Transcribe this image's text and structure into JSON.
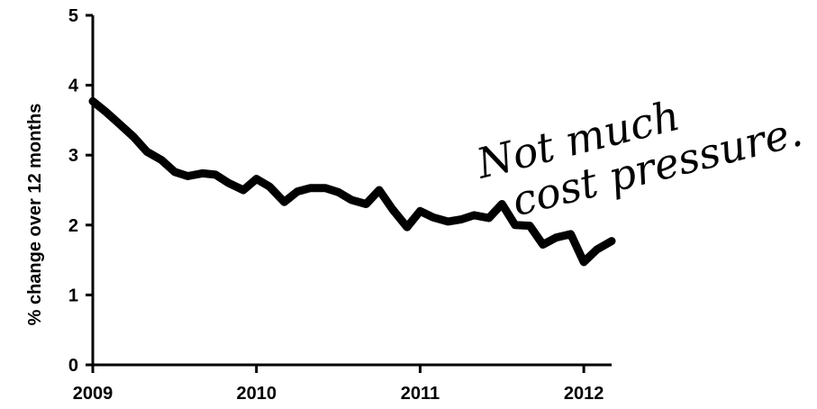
{
  "chart_data": {
    "type": "line",
    "title": "",
    "xlabel": "",
    "ylabel": "% change over 12 months",
    "xlim": [
      2009.0,
      2012.17
    ],
    "ylim": [
      0,
      5
    ],
    "x_ticks": [
      {
        "value": 2009,
        "label": "2009"
      },
      {
        "value": 2010,
        "label": "2010"
      },
      {
        "value": 2011,
        "label": "2011"
      },
      {
        "value": 2012,
        "label": "2012"
      }
    ],
    "y_ticks": [
      {
        "value": 0,
        "label": "0"
      },
      {
        "value": 1,
        "label": "1"
      },
      {
        "value": 2,
        "label": "2"
      },
      {
        "value": 3,
        "label": "3"
      },
      {
        "value": 4,
        "label": "4"
      },
      {
        "value": 5,
        "label": "5"
      }
    ],
    "grid": false,
    "series": [
      {
        "color": "#000000",
        "x": [
          2009.0,
          2009.08,
          2009.17,
          2009.25,
          2009.33,
          2009.42,
          2009.5,
          2009.58,
          2009.67,
          2009.75,
          2009.83,
          2009.92,
          2010.0,
          2010.08,
          2010.17,
          2010.25,
          2010.33,
          2010.42,
          2010.5,
          2010.58,
          2010.67,
          2010.75,
          2010.83,
          2010.92,
          2011.0,
          2011.08,
          2011.17,
          2011.25,
          2011.33,
          2011.42,
          2011.5,
          2011.58,
          2011.67,
          2011.75,
          2011.83,
          2011.92,
          2012.0,
          2012.08,
          2012.17
        ],
        "y": [
          3.77,
          3.62,
          3.43,
          3.26,
          3.05,
          2.93,
          2.76,
          2.7,
          2.74,
          2.72,
          2.6,
          2.5,
          2.66,
          2.55,
          2.33,
          2.48,
          2.53,
          2.53,
          2.47,
          2.36,
          2.3,
          2.5,
          2.23,
          1.97,
          2.2,
          2.11,
          2.05,
          2.08,
          2.14,
          2.1,
          2.3,
          2.0,
          1.99,
          1.72,
          1.82,
          1.87,
          1.47,
          1.65,
          1.77
        ]
      }
    ],
    "annotation": {
      "lines": [
        "Not much",
        "cost pressure."
      ],
      "style": "handwritten"
    }
  }
}
